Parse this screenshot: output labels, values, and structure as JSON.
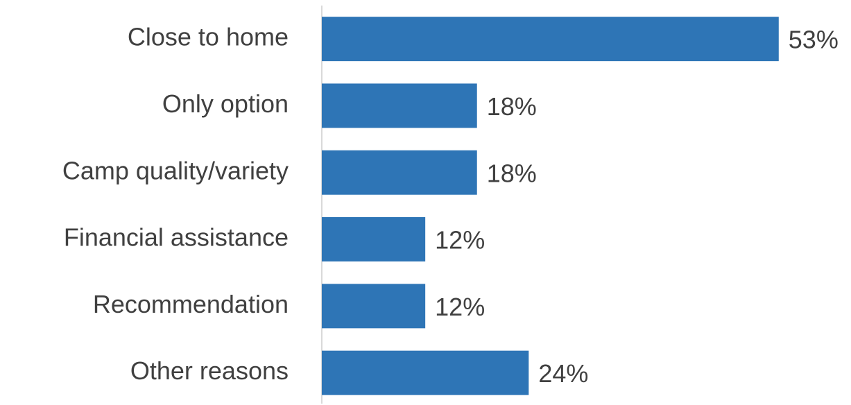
{
  "chart_data": {
    "type": "hbar",
    "categories": [
      "Close to home",
      "Only option",
      "Camp quality/variety",
      "Financial assistance",
      "Recommendation",
      "Other reasons"
    ],
    "values": [
      53,
      18,
      18,
      12,
      12,
      24
    ],
    "value_labels": [
      "53%",
      "18%",
      "18%",
      "12%",
      "12%",
      "24%"
    ],
    "color": "#2e75b6"
  }
}
